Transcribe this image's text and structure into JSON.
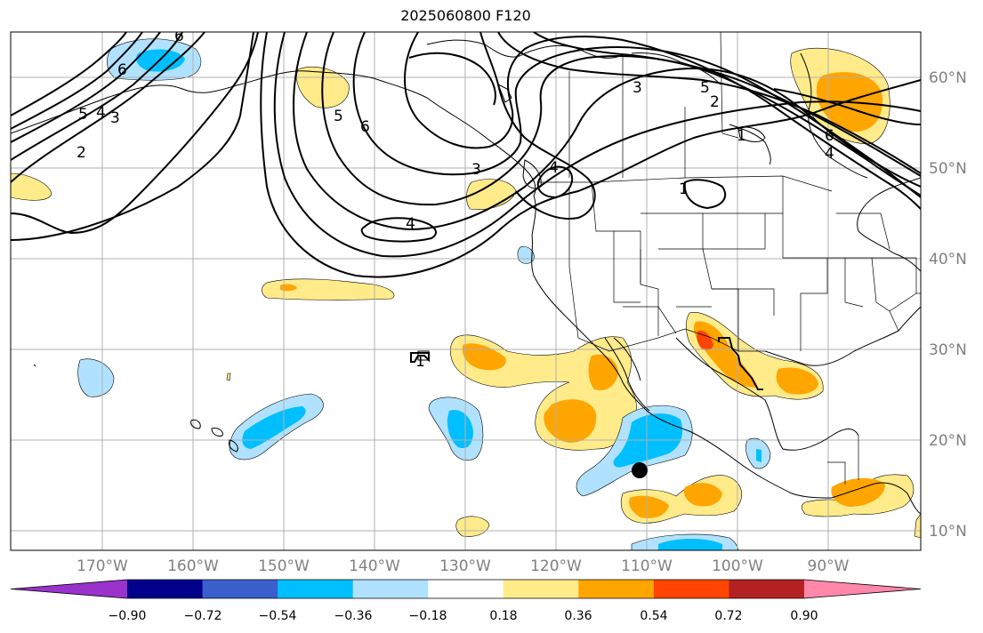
{
  "title": "2025060800 F120",
  "map": {
    "lon_labels": [
      "170°W",
      "160°W",
      "150°W",
      "140°W",
      "130°W",
      "120°W",
      "110°W",
      "100°W",
      "90°W"
    ],
    "lat_labels": [
      "60°N",
      "50°N",
      "40°N",
      "30°N",
      "20°N",
      "10°N"
    ],
    "contour_labels": [
      "6",
      "5",
      "4",
      "3",
      "2",
      "6",
      "5",
      "6",
      "3",
      "4",
      "4",
      "3",
      "5",
      "2",
      "6",
      "4",
      "1",
      "1",
      "1"
    ]
  },
  "colorbar": {
    "ticks": [
      "−0.90",
      "−0.72",
      "−0.54",
      "−0.36",
      "−0.18",
      "0.18",
      "0.36",
      "0.54",
      "0.72",
      "0.90"
    ],
    "colors": [
      "#9933cc",
      "#00008b",
      "#3a5fcd",
      "#00bfff",
      "#b0e2ff",
      "#ffffff",
      "#ffeb8a",
      "#ffa500",
      "#ff4500",
      "#b22222",
      "#ff88aa"
    ]
  },
  "colors": {
    "pos1": "#ffeb8a",
    "pos2": "#ffa500",
    "pos3": "#ff4500",
    "neg1": "#b0e2ff",
    "neg2": "#00bfff",
    "grid": "#b0b0b0"
  }
}
